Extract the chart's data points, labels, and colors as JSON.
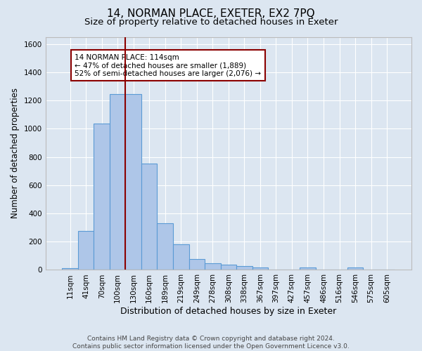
{
  "title": "14, NORMAN PLACE, EXETER, EX2 7PQ",
  "subtitle": "Size of property relative to detached houses in Exeter",
  "xlabel": "Distribution of detached houses by size in Exeter",
  "ylabel": "Number of detached properties",
  "footer_line1": "Contains HM Land Registry data © Crown copyright and database right 2024.",
  "footer_line2": "Contains public sector information licensed under the Open Government Licence v3.0.",
  "bar_labels": [
    "11sqm",
    "41sqm",
    "70sqm",
    "100sqm",
    "130sqm",
    "160sqm",
    "189sqm",
    "219sqm",
    "249sqm",
    "278sqm",
    "308sqm",
    "338sqm",
    "367sqm",
    "397sqm",
    "427sqm",
    "457sqm",
    "486sqm",
    "516sqm",
    "546sqm",
    "575sqm",
    "605sqm"
  ],
  "bar_values": [
    10,
    275,
    1035,
    1245,
    1245,
    755,
    330,
    180,
    75,
    45,
    35,
    25,
    15,
    0,
    0,
    15,
    0,
    0,
    15,
    0,
    0
  ],
  "bar_color": "#aec6e8",
  "bar_edgecolor": "#5b9bd5",
  "vline_x": 3.5,
  "vline_color": "#8b0000",
  "annotation_text": "14 NORMAN PLACE: 114sqm\n← 47% of detached houses are smaller (1,889)\n52% of semi-detached houses are larger (2,076) →",
  "annotation_box_edgecolor": "#8b0000",
  "annotation_box_facecolor": "#ffffff",
  "ylim": [
    0,
    1650
  ],
  "yticks": [
    0,
    200,
    400,
    600,
    800,
    1000,
    1200,
    1400,
    1600
  ],
  "background_color": "#dce6f1",
  "plot_background_color": "#dce6f1",
  "grid_color": "#ffffff",
  "title_fontsize": 11,
  "subtitle_fontsize": 9.5,
  "xlabel_fontsize": 9,
  "ylabel_fontsize": 8.5,
  "tick_fontsize": 7.5,
  "footer_fontsize": 6.5
}
